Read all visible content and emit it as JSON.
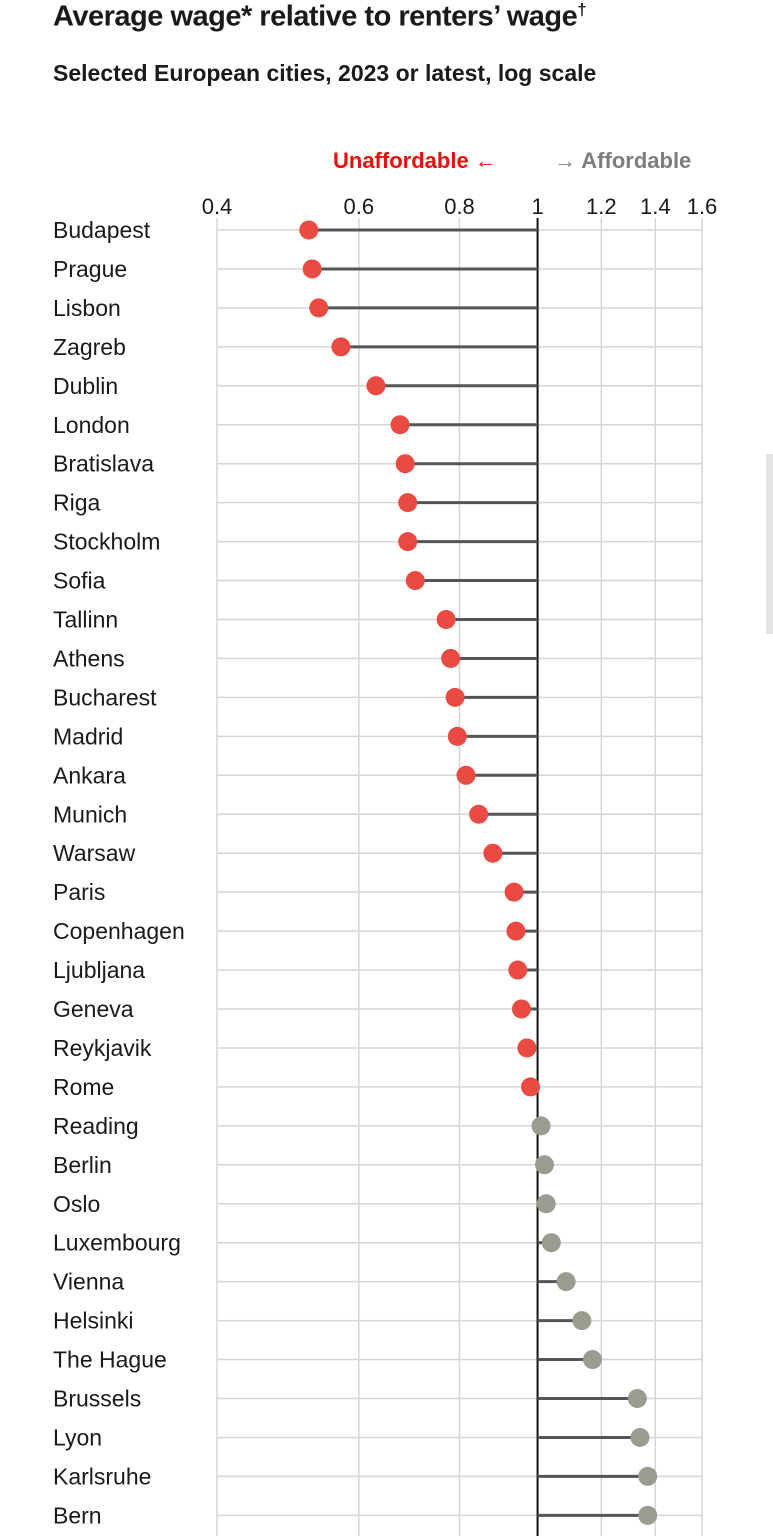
{
  "header": {
    "title": "Average wage* relative to renters’ wage",
    "title_mark": "†",
    "subtitle": "Selected European cities, 2023 or latest, log scale"
  },
  "legend": {
    "left": "Unaffordable ←",
    "right": "→ Affordable"
  },
  "colors": {
    "unaffordable": "#e94b43",
    "affordable": "#9b9b91",
    "stem": "#555555",
    "grid": "#d6d6d6",
    "reference": "#111111"
  },
  "chart_data": {
    "type": "lollipop",
    "title": "Average wage* relative to renters’ wage†",
    "subtitle": "Selected European cities, 2023 or latest, log scale",
    "x_scale": "log",
    "xlim": [
      0.4,
      1.6
    ],
    "reference": 1,
    "x_ticks": [
      0.4,
      0.6,
      0.8,
      1,
      1.2,
      1.4,
      1.6
    ],
    "x_tick_labels": [
      "0.4",
      "0.6",
      "0.8",
      "1",
      "1.2",
      "1.4",
      "1.6"
    ],
    "grid": true,
    "categories": [
      "Budapest",
      "Prague",
      "Lisbon",
      "Zagreb",
      "Dublin",
      "London",
      "Bratislava",
      "Riga",
      "Stockholm",
      "Sofia",
      "Tallinn",
      "Athens",
      "Bucharest",
      "Madrid",
      "Ankara",
      "Munich",
      "Warsaw",
      "Paris",
      "Copenhagen",
      "Ljubljana",
      "Geneva",
      "Reykjavik",
      "Rome",
      "Reading",
      "Berlin",
      "Oslo",
      "Luxembourg",
      "Vienna",
      "Helsinki",
      "The Hague",
      "Brussels",
      "Lyon",
      "Karlsruhe",
      "Bern"
    ],
    "values": [
      0.52,
      0.525,
      0.535,
      0.57,
      0.63,
      0.675,
      0.685,
      0.69,
      0.69,
      0.705,
      0.77,
      0.78,
      0.79,
      0.795,
      0.815,
      0.845,
      0.88,
      0.935,
      0.94,
      0.945,
      0.955,
      0.97,
      0.98,
      1.01,
      1.02,
      1.025,
      1.04,
      1.085,
      1.135,
      1.17,
      1.33,
      1.34,
      1.37,
      1.37
    ]
  }
}
